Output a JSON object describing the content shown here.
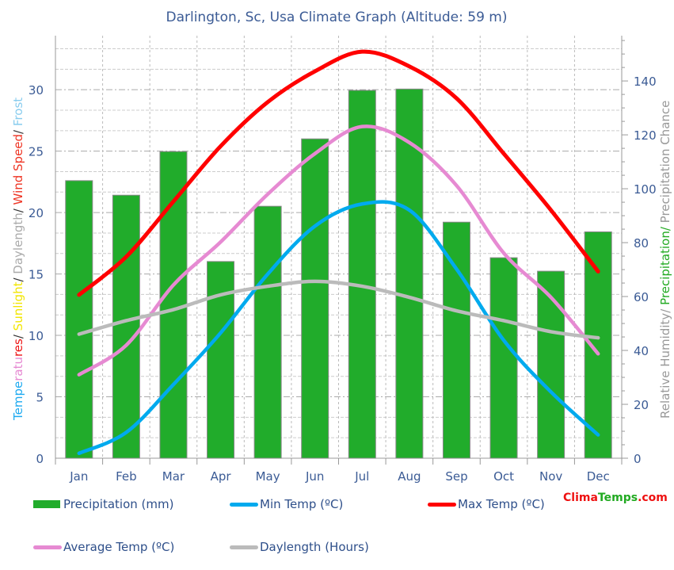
{
  "chart_data": {
    "type": "bar+line",
    "title": "Darlington, Sc, Usa Climate Graph (Altitude: 59 m)",
    "categories": [
      "Jan",
      "Feb",
      "Mar",
      "Apr",
      "May",
      "Jun",
      "Jul",
      "Aug",
      "Sep",
      "Oct",
      "Nov",
      "Dec"
    ],
    "ylabel_left_parts": [
      {
        "text": "Tempe",
        "color": "#1eaaf0"
      },
      {
        "text": "ratu",
        "color": "#e68ad2"
      },
      {
        "text": "res",
        "color": "#ee1111"
      },
      {
        "text": "/ ",
        "color": "#333333"
      },
      {
        "text": "Sunlight",
        "color": "#f2e600"
      },
      {
        "text": "/ ",
        "color": "#333333"
      },
      {
        "text": "Daylength",
        "color": "#aaaaaa"
      },
      {
        "text": "/ ",
        "color": "#333333"
      },
      {
        "text": "Wind Speed",
        "color": "#ee3322"
      },
      {
        "text": "/ ",
        "color": "#333333"
      },
      {
        "text": "Frost",
        "color": "#88ccee"
      }
    ],
    "ylabel_right_parts": [
      {
        "text": "Relative Humidity/ ",
        "color": "#999999"
      },
      {
        "text": "Precipitation/ ",
        "color": "#22aa22"
      },
      {
        "text": "Precipitation Chance",
        "color": "#999999"
      }
    ],
    "ylim_left": [
      0,
      34.4
    ],
    "ylim_right": [
      0,
      156.8
    ],
    "yticks_left": [
      0,
      5,
      10,
      15,
      20,
      25,
      30
    ],
    "yticks_right": [
      0,
      20,
      40,
      60,
      80,
      100,
      120,
      140
    ],
    "grid": true,
    "legend_placement": "bottom",
    "series": [
      {
        "name": "Precipitation (mm)",
        "type": "bar",
        "axis": "right",
        "color": "#21ac2b",
        "values": [
          103,
          97.6,
          113.8,
          73,
          93.5,
          118.5,
          136.5,
          137,
          87.6,
          74.4,
          69.4,
          84
        ]
      },
      {
        "name": "Min Temp (ºC)",
        "type": "line",
        "axis": "left",
        "color": "#00aaee",
        "values": [
          0.4,
          2.1,
          6,
          10.2,
          15,
          18.9,
          20.7,
          20.2,
          15.4,
          9.6,
          5.4,
          1.9
        ]
      },
      {
        "name": "Max Temp (ºC)",
        "type": "line",
        "axis": "left",
        "color": "#ff0000",
        "values": [
          13.3,
          16.4,
          20.9,
          25.4,
          29,
          31.5,
          33.1,
          31.9,
          29.3,
          24.8,
          20.2,
          15.2
        ]
      },
      {
        "name": "Average Temp (ºC)",
        "type": "line",
        "axis": "left",
        "color": "#e68ad2",
        "values": [
          6.8,
          9.2,
          14.1,
          17.6,
          21.5,
          24.8,
          27,
          25.7,
          22.2,
          16.7,
          13.1,
          8.5
        ]
      },
      {
        "name": "Daylength (Hours)",
        "type": "line",
        "axis": "left",
        "color": "#bbbbbb",
        "values": [
          10.1,
          11.2,
          12.1,
          13.3,
          14,
          14.4,
          14,
          13.1,
          12,
          11.2,
          10.3,
          9.8
        ]
      }
    ]
  },
  "brand": {
    "part1": "Clima",
    "part2": "Temps",
    "part3": ".com",
    "color1": "#ee1111",
    "color2": "#22aa22"
  }
}
